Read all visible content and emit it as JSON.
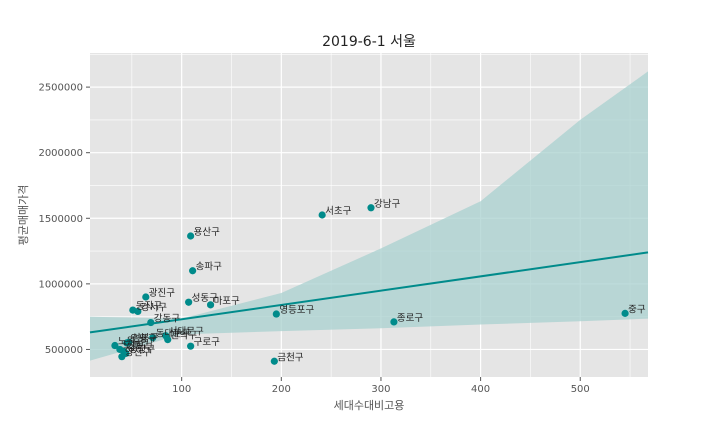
{
  "chart_data": {
    "type": "scatter",
    "title": "2019-6-1 서울",
    "xlabel": "세대수대비고용",
    "ylabel": "평균매매가격",
    "xlim": [
      8,
      568
    ],
    "ylim": [
      290000,
      2760000
    ],
    "x_ticks": [
      100,
      200,
      300,
      400,
      500
    ],
    "y_ticks": [
      500000,
      1000000,
      1500000,
      2000000,
      2500000
    ],
    "x_tick_labels": [
      "100",
      "200",
      "300",
      "400",
      "500"
    ],
    "y_tick_labels": [
      "500000",
      "1000000",
      "1500000",
      "2000000",
      "2500000"
    ],
    "grid": true,
    "colors": {
      "point": "#008B8B",
      "line": "#008B8B",
      "band": "#a8d0cf",
      "panel": "#e5e5e5",
      "grid": "#ffffff"
    },
    "points": [
      {
        "label": "중구",
        "x": 545,
        "y": 775000
      },
      {
        "label": "종로구",
        "x": 313,
        "y": 710000
      },
      {
        "label": "강남구",
        "x": 290,
        "y": 1580000
      },
      {
        "label": "서초구",
        "x": 241,
        "y": 1525000
      },
      {
        "label": "영등포구",
        "x": 195,
        "y": 770000
      },
      {
        "label": "금천구",
        "x": 193,
        "y": 410000
      },
      {
        "label": "용산구",
        "x": 109,
        "y": 1365000
      },
      {
        "label": "송파구",
        "x": 111,
        "y": 1100000
      },
      {
        "label": "마포구",
        "x": 129,
        "y": 840000
      },
      {
        "label": "성동구",
        "x": 107,
        "y": 860000
      },
      {
        "label": "구로구",
        "x": 109,
        "y": 525000
      },
      {
        "label": "광진구",
        "x": 64,
        "y": 900000
      },
      {
        "label": "동작구",
        "x": 51,
        "y": 800000
      },
      {
        "label": "강서구",
        "x": 56,
        "y": 790000
      },
      {
        "label": "강동구",
        "x": 69,
        "y": 705000
      },
      {
        "label": "서대문구",
        "x": 84,
        "y": 605000
      },
      {
        "label": "동대문구",
        "x": 71,
        "y": 590000
      },
      {
        "label": "관악구",
        "x": 86,
        "y": 575000
      },
      {
        "label": "은평구",
        "x": 45,
        "y": 550000
      },
      {
        "label": "성북구",
        "x": 47,
        "y": 555000
      },
      {
        "label": "노원구",
        "x": 33,
        "y": 530000
      },
      {
        "label": "도봉구",
        "x": 38,
        "y": 500000
      },
      {
        "label": "강북구",
        "x": 42,
        "y": 485000
      },
      {
        "label": "중랑구",
        "x": 44,
        "y": 470000
      },
      {
        "label": "양천구",
        "x": 40,
        "y": 445000
      }
    ],
    "regression": {
      "x": [
        8,
        568
      ],
      "y": [
        630000,
        1240000
      ]
    },
    "confidence_band": {
      "x": [
        8,
        100,
        200,
        300,
        400,
        500,
        568
      ],
      "lower": [
        415000,
        615000,
        640000,
        662000,
        690000,
        715000,
        735000
      ],
      "upper": [
        750000,
        735000,
        930000,
        1270000,
        1630000,
        2250000,
        2620000
      ]
    }
  }
}
